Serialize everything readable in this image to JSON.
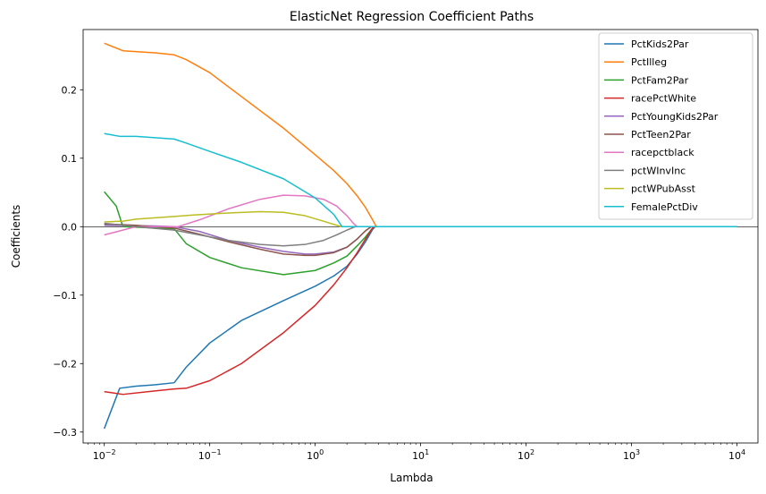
{
  "chart_data": {
    "type": "line",
    "title": "ElasticNet Regression Coefficient Paths",
    "xlabel": "Lambda",
    "ylabel": "Coefficients",
    "xscale": "log",
    "xlim": [
      0.0063,
      15800
    ],
    "ylim": [
      -0.316,
      0.288
    ],
    "x_ticks": [
      {
        "value": 0.01,
        "base": "10",
        "exp": "−2"
      },
      {
        "value": 0.1,
        "base": "10",
        "exp": "−1"
      },
      {
        "value": 1,
        "base": "10",
        "exp": "0"
      },
      {
        "value": 10,
        "base": "10",
        "exp": "1"
      },
      {
        "value": 100,
        "base": "10",
        "exp": "2"
      },
      {
        "value": 1000,
        "base": "10",
        "exp": "3"
      },
      {
        "value": 10000,
        "base": "10",
        "exp": "4"
      }
    ],
    "y_ticks": [
      {
        "value": -0.3,
        "label": "−0.3"
      },
      {
        "value": -0.2,
        "label": "−0.2"
      },
      {
        "value": -0.1,
        "label": "−0.1"
      },
      {
        "value": 0.0,
        "label": "0.0"
      },
      {
        "value": 0.1,
        "label": "0.1"
      },
      {
        "value": 0.2,
        "label": "0.2"
      }
    ],
    "zero_line": true,
    "grid": false,
    "legend_position": "top-right",
    "series": [
      {
        "name": "PctKids2Par",
        "color": "#1f77b4",
        "points": [
          [
            0.01,
            -0.295
          ],
          [
            0.014,
            -0.236
          ],
          [
            0.02,
            -0.233
          ],
          [
            0.03,
            -0.231
          ],
          [
            0.046,
            -0.228
          ],
          [
            0.06,
            -0.205
          ],
          [
            0.1,
            -0.17
          ],
          [
            0.2,
            -0.137
          ],
          [
            0.5,
            -0.108
          ],
          [
            1.0,
            -0.087
          ],
          [
            1.5,
            -0.072
          ],
          [
            2.0,
            -0.058
          ],
          [
            2.5,
            -0.04
          ],
          [
            3.0,
            -0.022
          ],
          [
            3.5,
            -0.004
          ],
          [
            3.7,
            0
          ],
          [
            10000,
            0
          ]
        ]
      },
      {
        "name": "PctIlleg",
        "color": "#ff7f0e",
        "points": [
          [
            0.01,
            0.268
          ],
          [
            0.015,
            0.257
          ],
          [
            0.03,
            0.254
          ],
          [
            0.046,
            0.251
          ],
          [
            0.06,
            0.244
          ],
          [
            0.1,
            0.225
          ],
          [
            0.2,
            0.19
          ],
          [
            0.5,
            0.144
          ],
          [
            1.0,
            0.105
          ],
          [
            1.5,
            0.082
          ],
          [
            2.0,
            0.063
          ],
          [
            2.5,
            0.045
          ],
          [
            3.0,
            0.028
          ],
          [
            3.5,
            0.01
          ],
          [
            3.8,
            0
          ],
          [
            10000,
            0
          ]
        ]
      },
      {
        "name": "PctFam2Par",
        "color": "#2ca02c",
        "points": [
          [
            0.01,
            0.051
          ],
          [
            0.013,
            0.03
          ],
          [
            0.015,
            0.0
          ],
          [
            0.046,
            -0.003
          ],
          [
            0.06,
            -0.025
          ],
          [
            0.1,
            -0.045
          ],
          [
            0.2,
            -0.06
          ],
          [
            0.5,
            -0.07
          ],
          [
            1.0,
            -0.064
          ],
          [
            1.5,
            -0.053
          ],
          [
            2.0,
            -0.043
          ],
          [
            2.5,
            -0.028
          ],
          [
            3.0,
            -0.015
          ],
          [
            3.5,
            -0.002
          ],
          [
            3.7,
            0
          ],
          [
            10000,
            0
          ]
        ]
      },
      {
        "name": "racePctWhite",
        "color": "#d62728",
        "points": [
          [
            0.01,
            -0.241
          ],
          [
            0.015,
            -0.245
          ],
          [
            0.03,
            -0.24
          ],
          [
            0.046,
            -0.237
          ],
          [
            0.06,
            -0.236
          ],
          [
            0.1,
            -0.225
          ],
          [
            0.2,
            -0.2
          ],
          [
            0.5,
            -0.155
          ],
          [
            1.0,
            -0.115
          ],
          [
            1.5,
            -0.085
          ],
          [
            2.0,
            -0.06
          ],
          [
            2.5,
            -0.038
          ],
          [
            3.0,
            -0.018
          ],
          [
            3.5,
            -0.002
          ],
          [
            3.7,
            0
          ],
          [
            10000,
            0
          ]
        ]
      },
      {
        "name": "PctYoungKids2Par",
        "color": "#9467bd",
        "points": [
          [
            0.01,
            0.002
          ],
          [
            0.03,
            0.001
          ],
          [
            0.046,
            0.0
          ],
          [
            0.08,
            -0.007
          ],
          [
            0.15,
            -0.02
          ],
          [
            0.3,
            -0.03
          ],
          [
            0.5,
            -0.036
          ],
          [
            0.8,
            -0.04
          ],
          [
            1.0,
            -0.04
          ],
          [
            1.5,
            -0.037
          ],
          [
            2.0,
            -0.03
          ],
          [
            2.5,
            -0.018
          ],
          [
            3.0,
            -0.006
          ],
          [
            3.4,
            0
          ],
          [
            10000,
            0
          ]
        ]
      },
      {
        "name": "PctTeen2Par",
        "color": "#8c564b",
        "points": [
          [
            0.01,
            0.004
          ],
          [
            0.02,
            0.002
          ],
          [
            0.046,
            -0.002
          ],
          [
            0.08,
            -0.011
          ],
          [
            0.15,
            -0.022
          ],
          [
            0.3,
            -0.033
          ],
          [
            0.5,
            -0.04
          ],
          [
            0.8,
            -0.042
          ],
          [
            1.0,
            -0.042
          ],
          [
            1.5,
            -0.038
          ],
          [
            2.0,
            -0.03
          ],
          [
            2.5,
            -0.018
          ],
          [
            3.0,
            -0.006
          ],
          [
            3.4,
            0
          ],
          [
            10000,
            0
          ]
        ]
      },
      {
        "name": "racepctblack",
        "color": "#e377c2",
        "points": [
          [
            0.01,
            -0.012
          ],
          [
            0.015,
            -0.005
          ],
          [
            0.02,
            0.0
          ],
          [
            0.05,
            0.0
          ],
          [
            0.08,
            0.01
          ],
          [
            0.15,
            0.026
          ],
          [
            0.3,
            0.04
          ],
          [
            0.5,
            0.046
          ],
          [
            0.8,
            0.045
          ],
          [
            1.2,
            0.04
          ],
          [
            1.6,
            0.03
          ],
          [
            2.0,
            0.016
          ],
          [
            2.3,
            0.005
          ],
          [
            2.5,
            0
          ],
          [
            10000,
            0
          ]
        ]
      },
      {
        "name": "pctWInvInc",
        "color": "#7f7f7f",
        "points": [
          [
            0.01,
            0.005
          ],
          [
            0.02,
            0.0
          ],
          [
            0.046,
            -0.005
          ],
          [
            0.08,
            -0.012
          ],
          [
            0.15,
            -0.02
          ],
          [
            0.3,
            -0.026
          ],
          [
            0.5,
            -0.028
          ],
          [
            0.8,
            -0.026
          ],
          [
            1.2,
            -0.02
          ],
          [
            1.6,
            -0.012
          ],
          [
            2.0,
            -0.005
          ],
          [
            2.4,
            0
          ],
          [
            10000,
            0
          ]
        ]
      },
      {
        "name": "pctWPubAsst",
        "color": "#bcbd22",
        "points": [
          [
            0.01,
            0.007
          ],
          [
            0.015,
            0.008
          ],
          [
            0.02,
            0.011
          ],
          [
            0.046,
            0.015
          ],
          [
            0.07,
            0.017
          ],
          [
            0.15,
            0.02
          ],
          [
            0.3,
            0.022
          ],
          [
            0.5,
            0.021
          ],
          [
            0.8,
            0.016
          ],
          [
            1.2,
            0.008
          ],
          [
            1.6,
            0.002
          ],
          [
            1.8,
            0
          ],
          [
            10000,
            0
          ]
        ]
      },
      {
        "name": "FemalePctDiv",
        "color": "#17becf",
        "points": [
          [
            0.01,
            0.136
          ],
          [
            0.014,
            0.132
          ],
          [
            0.02,
            0.132
          ],
          [
            0.046,
            0.128
          ],
          [
            0.06,
            0.122
          ],
          [
            0.1,
            0.11
          ],
          [
            0.2,
            0.094
          ],
          [
            0.5,
            0.07
          ],
          [
            1.0,
            0.042
          ],
          [
            1.5,
            0.018
          ],
          [
            1.8,
            0
          ],
          [
            10000,
            0
          ]
        ]
      }
    ]
  }
}
